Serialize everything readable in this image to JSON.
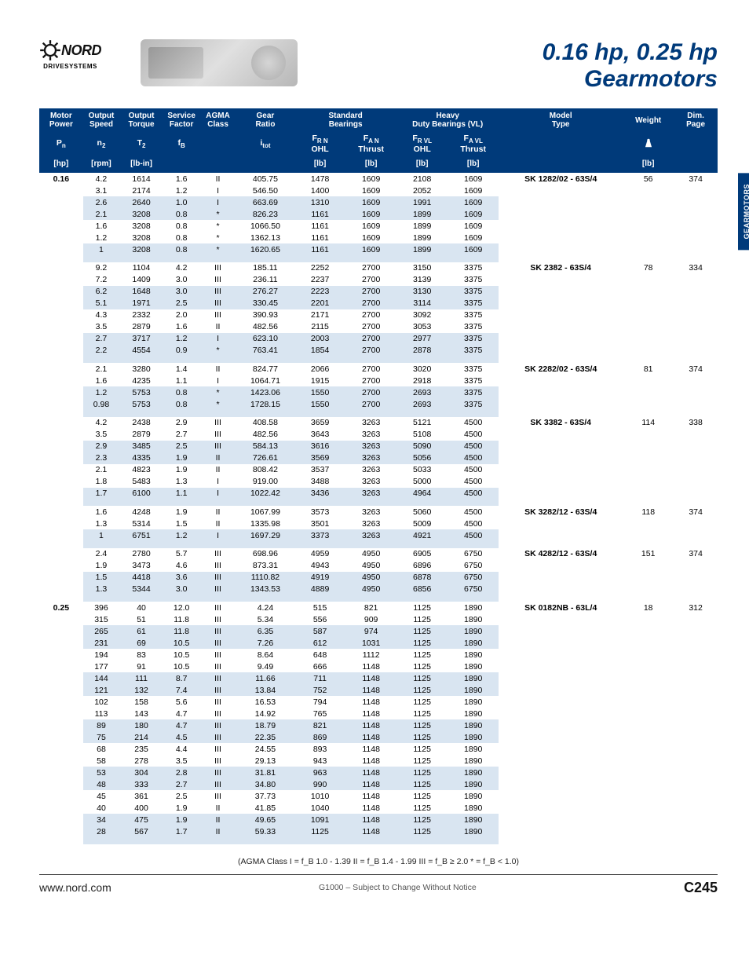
{
  "logo": {
    "brand": "NORD",
    "sub": "DRIVESYSTEMS"
  },
  "title": {
    "line1": "0.16 hp, 0.25 hp",
    "line2": "Gearmotors"
  },
  "side_tab": "GEARMOTORS",
  "table": {
    "header1": [
      "Motor Power",
      "Output Speed",
      "Output Torque",
      "Service Factor",
      "AGMA Class",
      "Gear Ratio",
      "Standard Bearings",
      "Heavy Duty Bearings (VL)",
      "Model Type",
      "Weight",
      "Dim. Page"
    ],
    "header2_symbols": {
      "pn": "P",
      "pn_sub": "n",
      "n2": "n",
      "n2_sub": "2",
      "t2": "T",
      "t2_sub": "2",
      "fb": "f",
      "fb_sub": "B",
      "itot": "i",
      "itot_sub": "tot",
      "frn": "F",
      "frn_sub": "R N",
      "frn_lbl": "OHL",
      "fan": "F",
      "fan_sub": "A N",
      "fan_lbl": "Thrust",
      "frvl": "F",
      "frvl_sub": "R VL",
      "frvl_lbl": "OHL",
      "favl": "F",
      "favl_sub": "A VL",
      "favl_lbl": "Thrust"
    },
    "header3_units": [
      "[hp]",
      "[rpm]",
      "[lb-in]",
      "",
      "",
      "",
      "[lb]",
      "[lb]",
      "[lb]",
      "[lb]",
      "",
      "[lb]",
      ""
    ],
    "col_widths_pct": [
      6,
      5,
      6,
      5,
      5,
      8,
      7,
      7,
      7,
      7,
      17,
      7,
      6
    ],
    "colors": {
      "header_bg": "#003a7a",
      "header_fg": "#ffffff",
      "shade_row": "#d9e5f1",
      "text": "#111111"
    },
    "groups": [
      {
        "power": "0.16",
        "model": "SK 1282/02 - 63S/4",
        "weight": "56",
        "dim": "374",
        "rows": [
          {
            "n2": "4.2",
            "t2": "1614",
            "fb": "1.6",
            "agma": "II",
            "itot": "405.75",
            "frn": "1478",
            "fan": "1609",
            "frvl": "2108",
            "favl": "1609",
            "shade": false
          },
          {
            "n2": "3.1",
            "t2": "2174",
            "fb": "1.2",
            "agma": "I",
            "itot": "546.50",
            "frn": "1400",
            "fan": "1609",
            "frvl": "2052",
            "favl": "1609",
            "shade": false
          },
          {
            "n2": "2.6",
            "t2": "2640",
            "fb": "1.0",
            "agma": "I",
            "itot": "663.69",
            "frn": "1310",
            "fan": "1609",
            "frvl": "1991",
            "favl": "1609",
            "shade": true
          },
          {
            "n2": "2.1",
            "t2": "3208",
            "fb": "0.8",
            "agma": "*",
            "itot": "826.23",
            "frn": "1161",
            "fan": "1609",
            "frvl": "1899",
            "favl": "1609",
            "shade": true
          },
          {
            "n2": "1.6",
            "t2": "3208",
            "fb": "0.8",
            "agma": "*",
            "itot": "1066.50",
            "frn": "1161",
            "fan": "1609",
            "frvl": "1899",
            "favl": "1609",
            "shade": false
          },
          {
            "n2": "1.2",
            "t2": "3208",
            "fb": "0.8",
            "agma": "*",
            "itot": "1362.13",
            "frn": "1161",
            "fan": "1609",
            "frvl": "1899",
            "favl": "1609",
            "shade": false
          },
          {
            "n2": "1",
            "t2": "3208",
            "fb": "0.8",
            "agma": "*",
            "itot": "1620.65",
            "frn": "1161",
            "fan": "1609",
            "frvl": "1899",
            "favl": "1609",
            "shade": true
          }
        ]
      },
      {
        "power": "",
        "model": "SK 2382 - 63S/4",
        "weight": "78",
        "dim": "334",
        "rows": [
          {
            "n2": "9.2",
            "t2": "1104",
            "fb": "4.2",
            "agma": "III",
            "itot": "185.11",
            "frn": "2252",
            "fan": "2700",
            "frvl": "3150",
            "favl": "3375",
            "shade": false
          },
          {
            "n2": "7.2",
            "t2": "1409",
            "fb": "3.0",
            "agma": "III",
            "itot": "236.11",
            "frn": "2237",
            "fan": "2700",
            "frvl": "3139",
            "favl": "3375",
            "shade": false
          },
          {
            "n2": "6.2",
            "t2": "1648",
            "fb": "3.0",
            "agma": "III",
            "itot": "276.27",
            "frn": "2223",
            "fan": "2700",
            "frvl": "3130",
            "favl": "3375",
            "shade": true
          },
          {
            "n2": "5.1",
            "t2": "1971",
            "fb": "2.5",
            "agma": "III",
            "itot": "330.45",
            "frn": "2201",
            "fan": "2700",
            "frvl": "3114",
            "favl": "3375",
            "shade": true
          },
          {
            "n2": "4.3",
            "t2": "2332",
            "fb": "2.0",
            "agma": "III",
            "itot": "390.93",
            "frn": "2171",
            "fan": "2700",
            "frvl": "3092",
            "favl": "3375",
            "shade": false
          },
          {
            "n2": "3.5",
            "t2": "2879",
            "fb": "1.6",
            "agma": "II",
            "itot": "482.56",
            "frn": "2115",
            "fan": "2700",
            "frvl": "3053",
            "favl": "3375",
            "shade": false
          },
          {
            "n2": "2.7",
            "t2": "3717",
            "fb": "1.2",
            "agma": "I",
            "itot": "623.10",
            "frn": "2003",
            "fan": "2700",
            "frvl": "2977",
            "favl": "3375",
            "shade": true
          },
          {
            "n2": "2.2",
            "t2": "4554",
            "fb": "0.9",
            "agma": "*",
            "itot": "763.41",
            "frn": "1854",
            "fan": "2700",
            "frvl": "2878",
            "favl": "3375",
            "shade": true
          }
        ]
      },
      {
        "power": "",
        "model": "SK 2282/02 - 63S/4",
        "weight": "81",
        "dim": "374",
        "rows": [
          {
            "n2": "2.1",
            "t2": "3280",
            "fb": "1.4",
            "agma": "II",
            "itot": "824.77",
            "frn": "2066",
            "fan": "2700",
            "frvl": "3020",
            "favl": "3375",
            "shade": false
          },
          {
            "n2": "1.6",
            "t2": "4235",
            "fb": "1.1",
            "agma": "I",
            "itot": "1064.71",
            "frn": "1915",
            "fan": "2700",
            "frvl": "2918",
            "favl": "3375",
            "shade": false
          },
          {
            "n2": "1.2",
            "t2": "5753",
            "fb": "0.8",
            "agma": "*",
            "itot": "1423.06",
            "frn": "1550",
            "fan": "2700",
            "frvl": "2693",
            "favl": "3375",
            "shade": true
          },
          {
            "n2": "0.98",
            "t2": "5753",
            "fb": "0.8",
            "agma": "*",
            "itot": "1728.15",
            "frn": "1550",
            "fan": "2700",
            "frvl": "2693",
            "favl": "3375",
            "shade": true
          }
        ]
      },
      {
        "power": "",
        "model": "SK 3382 - 63S/4",
        "weight": "114",
        "dim": "338",
        "rows": [
          {
            "n2": "4.2",
            "t2": "2438",
            "fb": "2.9",
            "agma": "III",
            "itot": "408.58",
            "frn": "3659",
            "fan": "3263",
            "frvl": "5121",
            "favl": "4500",
            "shade": false
          },
          {
            "n2": "3.5",
            "t2": "2879",
            "fb": "2.7",
            "agma": "III",
            "itot": "482.56",
            "frn": "3643",
            "fan": "3263",
            "frvl": "5108",
            "favl": "4500",
            "shade": false
          },
          {
            "n2": "2.9",
            "t2": "3485",
            "fb": "2.5",
            "agma": "III",
            "itot": "584.13",
            "frn": "3616",
            "fan": "3263",
            "frvl": "5090",
            "favl": "4500",
            "shade": true
          },
          {
            "n2": "2.3",
            "t2": "4335",
            "fb": "1.9",
            "agma": "II",
            "itot": "726.61",
            "frn": "3569",
            "fan": "3263",
            "frvl": "5056",
            "favl": "4500",
            "shade": true
          },
          {
            "n2": "2.1",
            "t2": "4823",
            "fb": "1.9",
            "agma": "II",
            "itot": "808.42",
            "frn": "3537",
            "fan": "3263",
            "frvl": "5033",
            "favl": "4500",
            "shade": false
          },
          {
            "n2": "1.8",
            "t2": "5483",
            "fb": "1.3",
            "agma": "I",
            "itot": "919.00",
            "frn": "3488",
            "fan": "3263",
            "frvl": "5000",
            "favl": "4500",
            "shade": false
          },
          {
            "n2": "1.7",
            "t2": "6100",
            "fb": "1.1",
            "agma": "I",
            "itot": "1022.42",
            "frn": "3436",
            "fan": "3263",
            "frvl": "4964",
            "favl": "4500",
            "shade": true
          }
        ]
      },
      {
        "power": "",
        "model": "SK 3282/12 - 63S/4",
        "weight": "118",
        "dim": "374",
        "rows": [
          {
            "n2": "1.6",
            "t2": "4248",
            "fb": "1.9",
            "agma": "II",
            "itot": "1067.99",
            "frn": "3573",
            "fan": "3263",
            "frvl": "5060",
            "favl": "4500",
            "shade": false
          },
          {
            "n2": "1.3",
            "t2": "5314",
            "fb": "1.5",
            "agma": "II",
            "itot": "1335.98",
            "frn": "3501",
            "fan": "3263",
            "frvl": "5009",
            "favl": "4500",
            "shade": false
          },
          {
            "n2": "1",
            "t2": "6751",
            "fb": "1.2",
            "agma": "I",
            "itot": "1697.29",
            "frn": "3373",
            "fan": "3263",
            "frvl": "4921",
            "favl": "4500",
            "shade": true
          }
        ]
      },
      {
        "power": "",
        "model": "SK 4282/12 - 63S/4",
        "weight": "151",
        "dim": "374",
        "rows": [
          {
            "n2": "2.4",
            "t2": "2780",
            "fb": "5.7",
            "agma": "III",
            "itot": "698.96",
            "frn": "4959",
            "fan": "4950",
            "frvl": "6905",
            "favl": "6750",
            "shade": false
          },
          {
            "n2": "1.9",
            "t2": "3473",
            "fb": "4.6",
            "agma": "III",
            "itot": "873.31",
            "frn": "4943",
            "fan": "4950",
            "frvl": "6896",
            "favl": "6750",
            "shade": false
          },
          {
            "n2": "1.5",
            "t2": "4418",
            "fb": "3.6",
            "agma": "III",
            "itot": "1110.82",
            "frn": "4919",
            "fan": "4950",
            "frvl": "6878",
            "favl": "6750",
            "shade": true
          },
          {
            "n2": "1.3",
            "t2": "5344",
            "fb": "3.0",
            "agma": "III",
            "itot": "1343.53",
            "frn": "4889",
            "fan": "4950",
            "frvl": "6856",
            "favl": "6750",
            "shade": true
          }
        ]
      },
      {
        "power": "0.25",
        "model": "SK 0182NB - 63L/4",
        "weight": "18",
        "dim": "312",
        "rows": [
          {
            "n2": "396",
            "t2": "40",
            "fb": "12.0",
            "agma": "III",
            "itot": "4.24",
            "frn": "515",
            "fan": "821",
            "frvl": "1125",
            "favl": "1890",
            "shade": false
          },
          {
            "n2": "315",
            "t2": "51",
            "fb": "11.8",
            "agma": "III",
            "itot": "5.34",
            "frn": "556",
            "fan": "909",
            "frvl": "1125",
            "favl": "1890",
            "shade": false
          },
          {
            "n2": "265",
            "t2": "61",
            "fb": "11.8",
            "agma": "III",
            "itot": "6.35",
            "frn": "587",
            "fan": "974",
            "frvl": "1125",
            "favl": "1890",
            "shade": true
          },
          {
            "n2": "231",
            "t2": "69",
            "fb": "10.5",
            "agma": "III",
            "itot": "7.26",
            "frn": "612",
            "fan": "1031",
            "frvl": "1125",
            "favl": "1890",
            "shade": true
          },
          {
            "n2": "194",
            "t2": "83",
            "fb": "10.5",
            "agma": "III",
            "itot": "8.64",
            "frn": "648",
            "fan": "1112",
            "frvl": "1125",
            "favl": "1890",
            "shade": false
          },
          {
            "n2": "177",
            "t2": "91",
            "fb": "10.5",
            "agma": "III",
            "itot": "9.49",
            "frn": "666",
            "fan": "1148",
            "frvl": "1125",
            "favl": "1890",
            "shade": false
          },
          {
            "n2": "144",
            "t2": "111",
            "fb": "8.7",
            "agma": "III",
            "itot": "11.66",
            "frn": "711",
            "fan": "1148",
            "frvl": "1125",
            "favl": "1890",
            "shade": true
          },
          {
            "n2": "121",
            "t2": "132",
            "fb": "7.4",
            "agma": "III",
            "itot": "13.84",
            "frn": "752",
            "fan": "1148",
            "frvl": "1125",
            "favl": "1890",
            "shade": true
          },
          {
            "n2": "102",
            "t2": "158",
            "fb": "5.6",
            "agma": "III",
            "itot": "16.53",
            "frn": "794",
            "fan": "1148",
            "frvl": "1125",
            "favl": "1890",
            "shade": false
          },
          {
            "n2": "113",
            "t2": "143",
            "fb": "4.7",
            "agma": "III",
            "itot": "14.92",
            "frn": "765",
            "fan": "1148",
            "frvl": "1125",
            "favl": "1890",
            "shade": false
          },
          {
            "n2": "89",
            "t2": "180",
            "fb": "4.7",
            "agma": "III",
            "itot": "18.79",
            "frn": "821",
            "fan": "1148",
            "frvl": "1125",
            "favl": "1890",
            "shade": true
          },
          {
            "n2": "75",
            "t2": "214",
            "fb": "4.5",
            "agma": "III",
            "itot": "22.35",
            "frn": "869",
            "fan": "1148",
            "frvl": "1125",
            "favl": "1890",
            "shade": true
          },
          {
            "n2": "68",
            "t2": "235",
            "fb": "4.4",
            "agma": "III",
            "itot": "24.55",
            "frn": "893",
            "fan": "1148",
            "frvl": "1125",
            "favl": "1890",
            "shade": false
          },
          {
            "n2": "58",
            "t2": "278",
            "fb": "3.5",
            "agma": "III",
            "itot": "29.13",
            "frn": "943",
            "fan": "1148",
            "frvl": "1125",
            "favl": "1890",
            "shade": false
          },
          {
            "n2": "53",
            "t2": "304",
            "fb": "2.8",
            "agma": "III",
            "itot": "31.81",
            "frn": "963",
            "fan": "1148",
            "frvl": "1125",
            "favl": "1890",
            "shade": true
          },
          {
            "n2": "48",
            "t2": "333",
            "fb": "2.7",
            "agma": "III",
            "itot": "34.80",
            "frn": "990",
            "fan": "1148",
            "frvl": "1125",
            "favl": "1890",
            "shade": true
          },
          {
            "n2": "45",
            "t2": "361",
            "fb": "2.5",
            "agma": "III",
            "itot": "37.73",
            "frn": "1010",
            "fan": "1148",
            "frvl": "1125",
            "favl": "1890",
            "shade": false
          },
          {
            "n2": "40",
            "t2": "400",
            "fb": "1.9",
            "agma": "II",
            "itot": "41.85",
            "frn": "1040",
            "fan": "1148",
            "frvl": "1125",
            "favl": "1890",
            "shade": false
          },
          {
            "n2": "34",
            "t2": "475",
            "fb": "1.9",
            "agma": "II",
            "itot": "49.65",
            "frn": "1091",
            "fan": "1148",
            "frvl": "1125",
            "favl": "1890",
            "shade": true
          },
          {
            "n2": "28",
            "t2": "567",
            "fb": "1.7",
            "agma": "II",
            "itot": "59.33",
            "frn": "1125",
            "fan": "1148",
            "frvl": "1125",
            "favl": "1890",
            "shade": true
          }
        ]
      }
    ]
  },
  "footer": {
    "agma_note": "(AGMA Class   I = f_B  1.0 - 1.39        II = f_B  1.4 - 1.99        III = f_B  ≥ 2.0     * = f_B  < 1.0)",
    "url": "www.nord.com",
    "center": "G1000 – Subject to Change Without Notice",
    "page": "C245"
  }
}
